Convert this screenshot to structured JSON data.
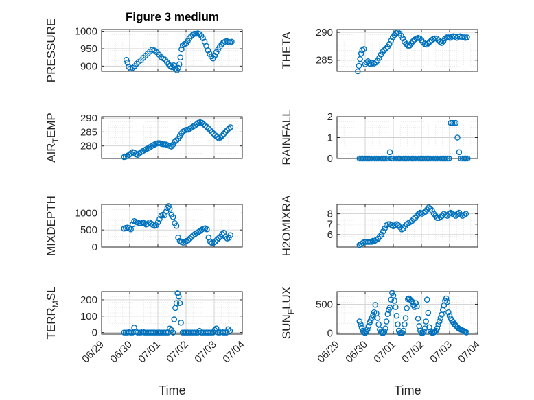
{
  "figure": {
    "title": "Figure 3 medium",
    "xlabel": "Time"
  },
  "x_ticks": [
    "06/29",
    "06/30",
    "07/01",
    "07/02",
    "07/03",
    "07/04"
  ],
  "colors": {
    "marker": "#0072BD",
    "axes": "#262626",
    "grid": "#d0d0d0",
    "minorgrid": "#e6e6e6"
  },
  "chart_data": [
    {
      "type": "scatter",
      "ylabel": "PRESSURE",
      "ylim": [
        885,
        1005
      ],
      "yticks": [
        900,
        950,
        1000
      ],
      "xlim": [
        0,
        5
      ],
      "grid": true,
      "x": [
        0.88,
        0.92,
        0.96,
        1.02,
        1.1,
        1.18,
        1.25,
        1.32,
        1.4,
        1.48,
        1.56,
        1.64,
        1.72,
        1.8,
        1.88,
        1.96,
        2.04,
        2.12,
        2.2,
        2.26,
        2.32,
        2.38,
        2.44,
        2.5,
        2.56,
        2.62,
        2.68,
        2.72,
        2.76,
        2.8,
        2.84,
        2.88,
        2.94,
        3.0,
        3.06,
        3.12,
        3.18,
        3.24,
        3.3,
        3.36,
        3.42,
        3.48,
        3.54,
        3.6,
        3.66,
        3.72,
        3.78,
        3.84,
        3.9,
        3.96,
        4.02,
        4.08,
        4.14,
        4.2,
        4.26,
        4.32,
        4.38,
        4.44,
        4.5,
        4.56,
        4.62
      ],
      "y": [
        918,
        910,
        898,
        893,
        895,
        900,
        907,
        912,
        917,
        924,
        930,
        936,
        942,
        947,
        945,
        940,
        933,
        926,
        922,
        918,
        912,
        906,
        900,
        897,
        902,
        893,
        888,
        895,
        905,
        925,
        948,
        960,
        963,
        965,
        972,
        980,
        986,
        990,
        993,
        993,
        994,
        992,
        987,
        980,
        970,
        958,
        945,
        935,
        928,
        922,
        930,
        940,
        948,
        955,
        962,
        967,
        970,
        972,
        970,
        968,
        970
      ]
    },
    {
      "type": "scatter",
      "ylabel": "THETA",
      "ylim": [
        283,
        290.5
      ],
      "yticks": [
        285,
        290
      ],
      "xlim": [
        0,
        5
      ],
      "grid": true,
      "x": [
        0.74,
        0.78,
        0.82,
        0.86,
        0.9,
        0.96,
        1.0,
        1.05,
        1.1,
        1.15,
        1.2,
        1.26,
        1.32,
        1.38,
        1.44,
        1.5,
        1.56,
        1.62,
        1.68,
        1.74,
        1.8,
        1.86,
        1.92,
        1.98,
        2.04,
        2.1,
        2.16,
        2.22,
        2.28,
        2.34,
        2.4,
        2.46,
        2.52,
        2.58,
        2.64,
        2.7,
        2.76,
        2.82,
        2.88,
        2.94,
        3.0,
        3.06,
        3.12,
        3.18,
        3.24,
        3.3,
        3.36,
        3.42,
        3.48,
        3.54,
        3.6,
        3.66,
        3.72,
        3.78,
        3.84,
        3.9,
        3.96,
        4.02,
        4.08,
        4.14,
        4.2,
        4.26,
        4.32,
        4.38,
        4.44,
        4.5,
        4.56,
        4.62
      ],
      "y": [
        282.8,
        284.0,
        285.2,
        286.2,
        286.8,
        287.0,
        284.3,
        284.6,
        284.8,
        284.4,
        284.3,
        284.5,
        284.4,
        284.6,
        284.9,
        285.4,
        286.0,
        286.5,
        286.8,
        287.1,
        287.4,
        287.9,
        288.5,
        289.1,
        289.5,
        289.9,
        290.0,
        289.8,
        289.4,
        288.9,
        288.3,
        287.9,
        287.6,
        287.6,
        288.0,
        288.4,
        288.7,
        288.9,
        289.0,
        288.9,
        288.6,
        288.2,
        287.9,
        287.8,
        288.0,
        288.3,
        288.6,
        288.8,
        288.9,
        288.9,
        288.6,
        288.3,
        288.1,
        288.4,
        288.9,
        289.1,
        289.1,
        289.0,
        289.2,
        289.3,
        289.2,
        289.0,
        289.2,
        289.3,
        289.1,
        289.2,
        289.0,
        289.1
      ]
    },
    {
      "type": "scatter",
      "ylabel": "AIR_TEMP",
      "ylim": [
        275.5,
        290.5
      ],
      "yticks": [
        280,
        285,
        290
      ],
      "xlim": [
        0,
        5
      ],
      "grid": true,
      "x": [
        0.8,
        0.86,
        0.92,
        0.98,
        1.04,
        1.1,
        1.16,
        1.22,
        1.28,
        1.34,
        1.4,
        1.46,
        1.52,
        1.58,
        1.64,
        1.7,
        1.76,
        1.82,
        1.88,
        1.94,
        2.0,
        2.06,
        2.12,
        2.18,
        2.24,
        2.3,
        2.36,
        2.42,
        2.48,
        2.54,
        2.6,
        2.66,
        2.72,
        2.78,
        2.84,
        2.9,
        2.96,
        3.02,
        3.08,
        3.14,
        3.2,
        3.26,
        3.32,
        3.38,
        3.44,
        3.5,
        3.56,
        3.62,
        3.68,
        3.74,
        3.8,
        3.86,
        3.92,
        3.98,
        4.04,
        4.1,
        4.16,
        4.22,
        4.28,
        4.34,
        4.4,
        4.46,
        4.52,
        4.58
      ],
      "y": [
        276.0,
        276.2,
        276.5,
        276.8,
        277.3,
        277.8,
        277.6,
        277.0,
        276.8,
        277.3,
        277.8,
        278.1,
        278.5,
        278.8,
        279.1,
        279.5,
        279.8,
        280.2,
        280.5,
        280.8,
        281.0,
        281.0,
        280.8,
        280.6,
        280.6,
        280.5,
        280.2,
        280.0,
        279.8,
        280.5,
        281.5,
        282.0,
        282.6,
        283.5,
        284.5,
        285.2,
        285.6,
        285.8,
        285.8,
        286.2,
        286.6,
        287.0,
        287.3,
        287.8,
        288.3,
        288.5,
        288.3,
        287.8,
        287.3,
        286.8,
        286.2,
        285.6,
        285.0,
        284.4,
        283.8,
        283.2,
        282.8,
        283.0,
        283.6,
        284.3,
        285.0,
        285.6,
        286.2,
        286.7
      ]
    },
    {
      "type": "scatter",
      "ylabel": "RAINFALL",
      "ylim": [
        0,
        2
      ],
      "yticks": [
        0,
        1,
        2
      ],
      "xlim": [
        0,
        5
      ],
      "grid": true,
      "x": [
        0.8,
        0.86,
        0.92,
        0.98,
        1.04,
        1.1,
        1.16,
        1.22,
        1.28,
        1.34,
        1.4,
        1.46,
        1.52,
        1.58,
        1.64,
        1.7,
        1.76,
        1.82,
        1.88,
        1.94,
        2.0,
        2.06,
        2.12,
        2.18,
        2.24,
        2.3,
        2.36,
        2.42,
        2.48,
        2.54,
        2.6,
        2.66,
        2.72,
        2.78,
        2.84,
        2.9,
        2.96,
        3.02,
        3.08,
        3.14,
        3.2,
        3.26,
        3.32,
        3.38,
        3.44,
        3.5,
        3.56,
        3.62,
        3.68,
        3.74,
        3.8,
        3.86,
        3.92,
        3.98,
        4.04,
        4.1,
        4.16,
        4.22,
        4.28,
        4.34,
        4.4,
        4.46,
        4.52,
        4.58,
        4.64
      ],
      "y": [
        0,
        0,
        0,
        0,
        0,
        0,
        0,
        0,
        0,
        0,
        0,
        0,
        0,
        0,
        0,
        0,
        0,
        0,
        0.3,
        0,
        0,
        0,
        0,
        0,
        0,
        0,
        0,
        0,
        0,
        0,
        0,
        0,
        0,
        0,
        0,
        0,
        0,
        0,
        0,
        0,
        0,
        0,
        0,
        0,
        0,
        0,
        0,
        0,
        0,
        0,
        0,
        0,
        0,
        0,
        1.7,
        1.7,
        1.7,
        1.7,
        1.0,
        0.3,
        0,
        0,
        0,
        0,
        0
      ]
    },
    {
      "type": "scatter",
      "ylabel": "MIXDEPTH",
      "ylim": [
        0,
        1250
      ],
      "yticks": [
        0,
        500,
        1000
      ],
      "xlim": [
        0,
        5
      ],
      "grid": true,
      "x": [
        0.8,
        0.86,
        0.92,
        0.98,
        1.04,
        1.1,
        1.16,
        1.22,
        1.28,
        1.34,
        1.4,
        1.46,
        1.52,
        1.58,
        1.64,
        1.7,
        1.76,
        1.82,
        1.88,
        1.94,
        2.0,
        2.06,
        2.12,
        2.18,
        2.24,
        2.3,
        2.34,
        2.38,
        2.42,
        2.48,
        2.54,
        2.6,
        2.66,
        2.72,
        2.78,
        2.84,
        2.9,
        2.96,
        3.02,
        3.08,
        3.14,
        3.2,
        3.26,
        3.32,
        3.38,
        3.44,
        3.5,
        3.56,
        3.62,
        3.68,
        3.74,
        3.8,
        3.86,
        3.92,
        3.98,
        4.04,
        4.1,
        4.16,
        4.22,
        4.28,
        4.34,
        4.4,
        4.46,
        4.52,
        4.58
      ],
      "y": [
        540,
        560,
        570,
        550,
        520,
        660,
        760,
        740,
        720,
        700,
        690,
        710,
        700,
        660,
        680,
        720,
        690,
        650,
        620,
        640,
        720,
        820,
        920,
        950,
        930,
        1050,
        1150,
        1200,
        1120,
        950,
        880,
        700,
        620,
        280,
        180,
        150,
        130,
        160,
        180,
        200,
        250,
        300,
        350,
        380,
        410,
        440,
        470,
        510,
        540,
        550,
        520,
        280,
        160,
        120,
        130,
        160,
        210,
        260,
        300,
        380,
        420,
        300,
        250,
        270,
        350
      ]
    },
    {
      "type": "scatter",
      "ylabel": "H2OMIXRA",
      "ylim": [
        4.8,
        8.9
      ],
      "yticks": [
        6,
        7,
        8
      ],
      "xlim": [
        0,
        5
      ],
      "grid": true,
      "x": [
        0.8,
        0.86,
        0.92,
        0.98,
        1.04,
        1.1,
        1.16,
        1.22,
        1.28,
        1.34,
        1.4,
        1.46,
        1.52,
        1.58,
        1.64,
        1.7,
        1.76,
        1.82,
        1.88,
        1.94,
        2.0,
        2.06,
        2.12,
        2.18,
        2.24,
        2.3,
        2.36,
        2.42,
        2.48,
        2.54,
        2.6,
        2.66,
        2.72,
        2.78,
        2.84,
        2.9,
        2.96,
        3.02,
        3.08,
        3.14,
        3.2,
        3.26,
        3.32,
        3.38,
        3.44,
        3.5,
        3.56,
        3.62,
        3.68,
        3.74,
        3.8,
        3.86,
        3.92,
        3.98,
        4.04,
        4.1,
        4.16,
        4.22,
        4.28,
        4.34,
        4.4,
        4.46,
        4.52,
        4.58
      ],
      "y": [
        5.0,
        5.1,
        5.2,
        5.3,
        5.3,
        5.3,
        5.3,
        5.3,
        5.4,
        5.4,
        5.5,
        5.6,
        5.8,
        6.0,
        6.3,
        6.6,
        6.9,
        7.0,
        7.0,
        6.9,
        6.8,
        6.9,
        7.0,
        6.9,
        6.7,
        6.5,
        6.6,
        6.8,
        7.0,
        7.1,
        7.2,
        7.3,
        7.5,
        7.6,
        7.8,
        8.0,
        8.1,
        8.0,
        8.1,
        8.2,
        8.4,
        8.6,
        8.5,
        8.3,
        8.0,
        7.8,
        7.6,
        7.6,
        7.7,
        7.8,
        8.0,
        7.9,
        7.8,
        8.0,
        8.1,
        8.0,
        7.9,
        7.8,
        8.0,
        8.1,
        7.9,
        7.8,
        7.9,
        8.0
      ]
    },
    {
      "type": "scatter",
      "ylabel": "TERR_MSL",
      "ylim": [
        -10,
        250
      ],
      "yticks": [
        0,
        100,
        200
      ],
      "xlim": [
        0,
        5
      ],
      "grid": true,
      "x": [
        0.8,
        0.86,
        0.92,
        0.98,
        1.04,
        1.1,
        1.16,
        1.22,
        1.28,
        1.34,
        1.4,
        1.46,
        1.52,
        1.58,
        1.64,
        1.7,
        1.76,
        1.82,
        1.88,
        1.94,
        2.0,
        2.06,
        2.12,
        2.18,
        2.24,
        2.3,
        2.36,
        2.42,
        2.48,
        2.54,
        2.58,
        2.62,
        2.66,
        2.7,
        2.74,
        2.78,
        2.82,
        2.88,
        2.94,
        3.0,
        3.06,
        3.12,
        3.18,
        3.24,
        3.3,
        3.36,
        3.42,
        3.48,
        3.54,
        3.6,
        3.66,
        3.72,
        3.78,
        3.84,
        3.9,
        3.96,
        4.02,
        4.08,
        4.14,
        4.2,
        4.26,
        4.32,
        4.38,
        4.44,
        4.5,
        4.56
      ],
      "y": [
        0,
        0,
        0,
        2,
        0,
        0,
        30,
        5,
        0,
        0,
        0,
        5,
        0,
        0,
        0,
        0,
        0,
        0,
        0,
        0,
        0,
        0,
        0,
        0,
        0,
        0,
        0,
        25,
        15,
        0,
        80,
        150,
        180,
        240,
        220,
        180,
        60,
        0,
        0,
        0,
        0,
        0,
        0,
        0,
        0,
        0,
        0,
        10,
        0,
        0,
        0,
        0,
        0,
        0,
        0,
        0,
        15,
        25,
        0,
        0,
        5,
        0,
        0,
        0,
        20,
        10
      ]
    },
    {
      "type": "scatter",
      "ylabel": "SUN_FLUX",
      "ylim": [
        -20,
        720
      ],
      "yticks": [
        0,
        500
      ],
      "xlim": [
        0,
        5
      ],
      "grid": true,
      "x": [
        0.8,
        0.84,
        0.88,
        0.92,
        0.96,
        1.0,
        1.04,
        1.08,
        1.12,
        1.16,
        1.2,
        1.24,
        1.28,
        1.32,
        1.36,
        1.4,
        1.44,
        1.48,
        1.52,
        1.56,
        1.6,
        1.64,
        1.68,
        1.72,
        1.76,
        1.8,
        1.84,
        1.88,
        1.92,
        1.96,
        2.0,
        2.04,
        2.08,
        2.12,
        2.16,
        2.2,
        2.24,
        2.28,
        2.32,
        2.36,
        2.4,
        2.44,
        2.48,
        2.52,
        2.56,
        2.6,
        2.64,
        2.68,
        2.72,
        2.76,
        2.8,
        2.84,
        2.88,
        2.92,
        2.96,
        3.0,
        3.04,
        3.08,
        3.12,
        3.16,
        3.2,
        3.24,
        3.28,
        3.32,
        3.36,
        3.4,
        3.44,
        3.48,
        3.52,
        3.56,
        3.6,
        3.64,
        3.68,
        3.72,
        3.76,
        3.8,
        3.84,
        3.88,
        3.92,
        3.96,
        4.0,
        4.04,
        4.08,
        4.12,
        4.16,
        4.2,
        4.24,
        4.28,
        4.32,
        4.36,
        4.4,
        4.44,
        4.48,
        4.52,
        4.56,
        4.6
      ],
      "y": [
        200,
        150,
        90,
        40,
        10,
        0,
        20,
        60,
        120,
        180,
        220,
        260,
        310,
        360,
        490,
        340,
        260,
        150,
        60,
        20,
        5,
        0,
        20,
        80,
        200,
        330,
        400,
        440,
        580,
        700,
        650,
        560,
        450,
        300,
        150,
        40,
        0,
        5,
        0,
        40,
        150,
        260,
        430,
        590,
        600,
        580,
        560,
        540,
        480,
        450,
        520,
        460,
        250,
        120,
        40,
        5,
        0,
        20,
        80,
        200,
        580,
        350,
        100,
        30,
        10,
        0,
        10,
        20,
        40,
        80,
        150,
        200,
        260,
        320,
        400,
        480,
        560,
        600,
        540,
        360,
        300,
        250,
        220,
        190,
        160,
        140,
        120,
        100,
        80,
        70,
        60,
        50,
        40,
        30,
        20,
        10
      ]
    }
  ]
}
